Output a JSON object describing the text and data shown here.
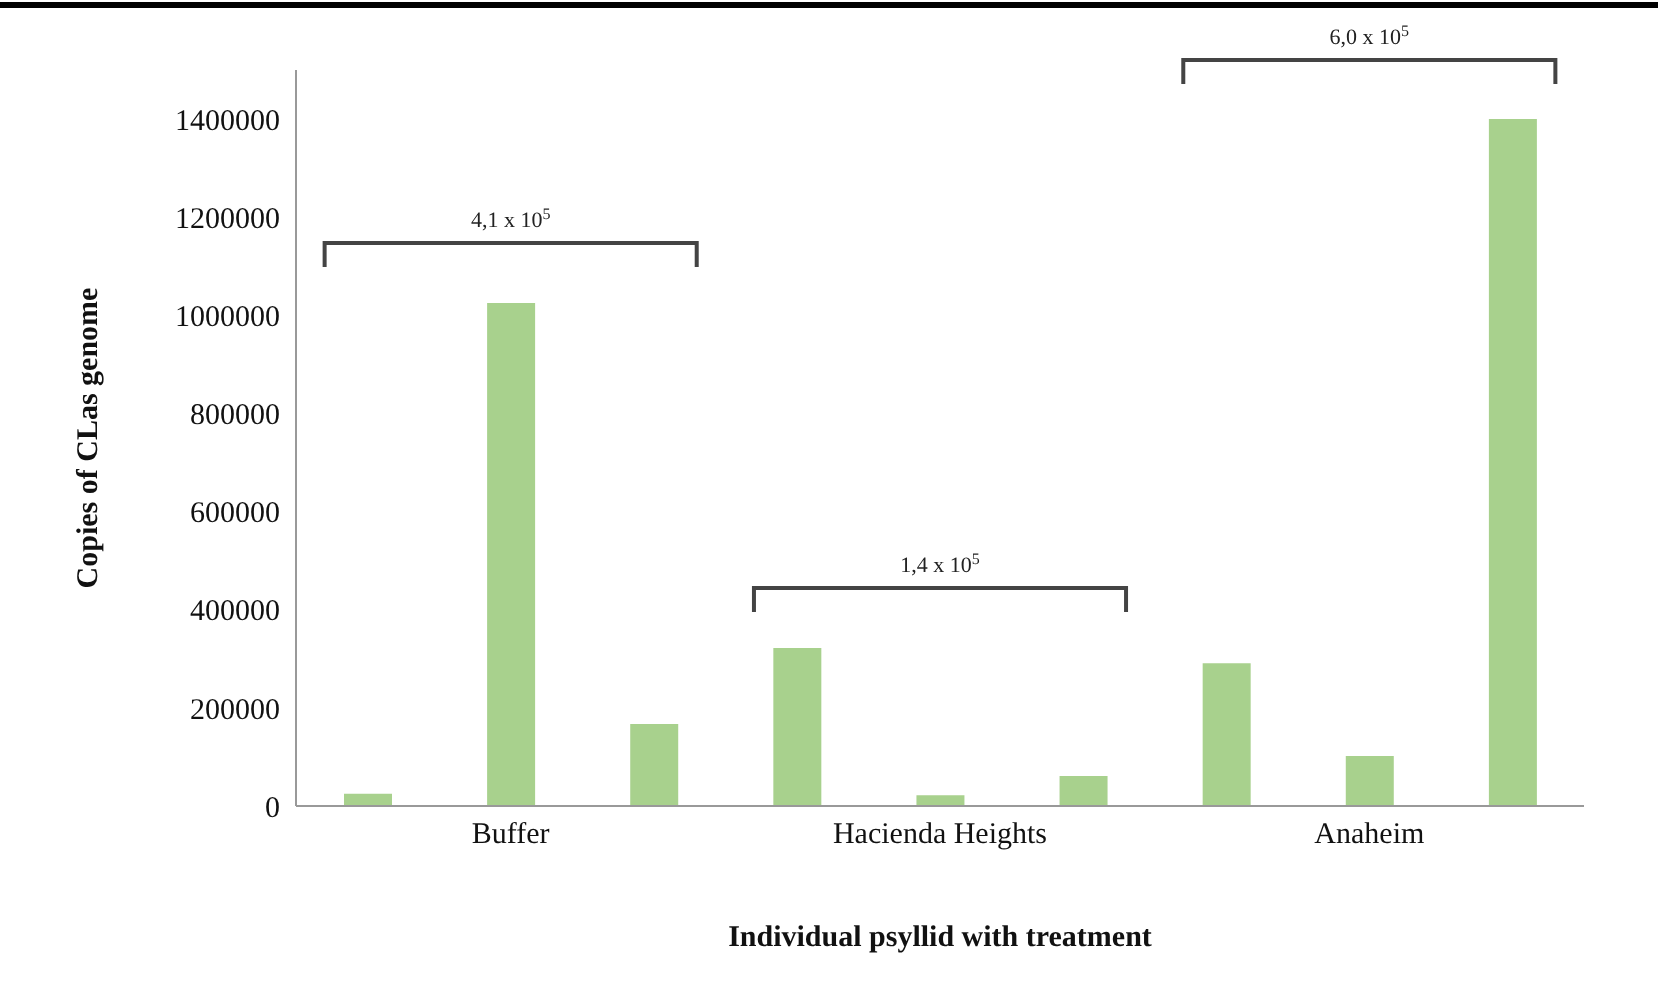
{
  "chart_data": {
    "type": "bar",
    "xlabel": "Individual psyllid with treatment",
    "ylabel": "Copies of CLas genome",
    "categories": [
      null,
      "Buffer",
      null,
      null,
      "Hacienda Heights",
      null,
      null,
      "Anaheim",
      null
    ],
    "values": [
      25000,
      1025000,
      167000,
      322000,
      22000,
      61000,
      291000,
      102000,
      1400000
    ],
    "color": "#a8d18d",
    "ylim": [
      0,
      1500000
    ],
    "yticks": [
      0,
      200000,
      400000,
      600000,
      800000,
      1000000,
      1200000,
      1400000
    ],
    "grid": false,
    "legend": false,
    "annotations": [
      "4,1 x 10$^{5}$",
      "1,4 x 10$^{5}$",
      "6,0 x 10$^{5}$"
    ]
  }
}
